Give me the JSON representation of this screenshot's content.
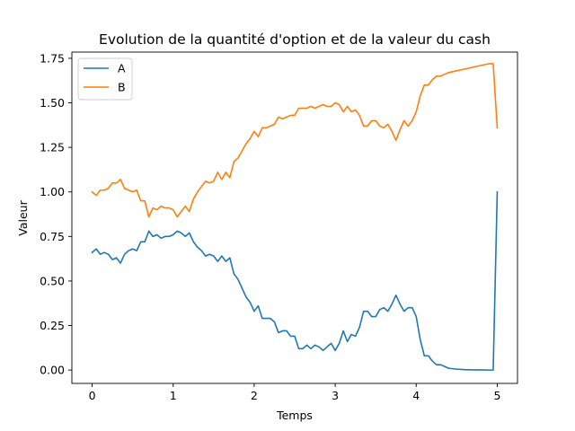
{
  "chart_data": {
    "type": "line",
    "title": "Evolution de la quantité d'option et de la valeur du cash",
    "xlabel": "Temps",
    "ylabel": "Valeur",
    "xlim": [
      -0.25,
      5.25
    ],
    "ylim": [
      -0.075,
      1.785
    ],
    "x_ticks": [
      0,
      1,
      2,
      3,
      4,
      5
    ],
    "x_tick_labels": [
      "0",
      "1",
      "2",
      "3",
      "4",
      "5"
    ],
    "y_ticks": [
      0.0,
      0.25,
      0.5,
      0.75,
      1.0,
      1.25,
      1.5,
      1.75
    ],
    "y_tick_labels": [
      "0.00",
      "0.25",
      "0.50",
      "0.75",
      "1.00",
      "1.25",
      "1.50",
      "1.75"
    ],
    "grid": false,
    "legend_position": "top-left",
    "series": [
      {
        "name": "A",
        "color": "#1f77b4",
        "x": [
          0.0,
          0.05,
          0.1,
          0.15,
          0.2,
          0.25,
          0.3,
          0.35,
          0.4,
          0.45,
          0.5,
          0.55,
          0.6,
          0.65,
          0.7,
          0.75,
          0.8,
          0.85,
          0.9,
          0.95,
          1.0,
          1.05,
          1.1,
          1.15,
          1.2,
          1.25,
          1.3,
          1.35,
          1.4,
          1.45,
          1.5,
          1.55,
          1.6,
          1.65,
          1.7,
          1.75,
          1.8,
          1.85,
          1.9,
          1.95,
          2.0,
          2.05,
          2.1,
          2.15,
          2.2,
          2.25,
          2.3,
          2.35,
          2.4,
          2.45,
          2.5,
          2.55,
          2.6,
          2.65,
          2.7,
          2.75,
          2.8,
          2.85,
          2.9,
          2.95,
          3.0,
          3.05,
          3.1,
          3.15,
          3.2,
          3.25,
          3.3,
          3.35,
          3.4,
          3.45,
          3.5,
          3.55,
          3.6,
          3.65,
          3.7,
          3.75,
          3.8,
          3.85,
          3.9,
          3.95,
          4.0,
          4.05,
          4.1,
          4.15,
          4.2,
          4.25,
          4.3,
          4.35,
          4.4,
          4.5,
          4.6,
          4.7,
          4.8,
          4.9,
          4.95,
          5.0
        ],
        "values": [
          0.66,
          0.68,
          0.65,
          0.66,
          0.65,
          0.62,
          0.63,
          0.6,
          0.65,
          0.67,
          0.68,
          0.67,
          0.72,
          0.72,
          0.78,
          0.75,
          0.76,
          0.74,
          0.75,
          0.75,
          0.76,
          0.78,
          0.77,
          0.75,
          0.77,
          0.72,
          0.69,
          0.67,
          0.64,
          0.65,
          0.64,
          0.61,
          0.64,
          0.61,
          0.63,
          0.54,
          0.51,
          0.46,
          0.41,
          0.38,
          0.33,
          0.36,
          0.29,
          0.29,
          0.29,
          0.27,
          0.21,
          0.22,
          0.22,
          0.19,
          0.19,
          0.12,
          0.12,
          0.14,
          0.12,
          0.14,
          0.13,
          0.11,
          0.13,
          0.15,
          0.11,
          0.15,
          0.22,
          0.16,
          0.2,
          0.19,
          0.24,
          0.33,
          0.33,
          0.3,
          0.3,
          0.34,
          0.35,
          0.33,
          0.37,
          0.42,
          0.37,
          0.33,
          0.35,
          0.35,
          0.3,
          0.17,
          0.08,
          0.08,
          0.05,
          0.03,
          0.03,
          0.02,
          0.01,
          0.005,
          0.002,
          0.001,
          0.001,
          0.0,
          0.0,
          1.0
        ]
      },
      {
        "name": "B",
        "color": "#ff7f0e",
        "x": [
          0.0,
          0.05,
          0.1,
          0.15,
          0.2,
          0.25,
          0.3,
          0.35,
          0.4,
          0.45,
          0.5,
          0.55,
          0.6,
          0.65,
          0.7,
          0.75,
          0.8,
          0.85,
          0.9,
          0.95,
          1.0,
          1.05,
          1.1,
          1.15,
          1.2,
          1.25,
          1.3,
          1.35,
          1.4,
          1.45,
          1.5,
          1.55,
          1.6,
          1.65,
          1.7,
          1.75,
          1.8,
          1.85,
          1.9,
          1.95,
          2.0,
          2.05,
          2.1,
          2.15,
          2.2,
          2.25,
          2.3,
          2.35,
          2.4,
          2.45,
          2.5,
          2.55,
          2.6,
          2.65,
          2.7,
          2.75,
          2.8,
          2.85,
          2.9,
          2.95,
          3.0,
          3.05,
          3.1,
          3.15,
          3.2,
          3.25,
          3.3,
          3.35,
          3.4,
          3.45,
          3.5,
          3.55,
          3.6,
          3.65,
          3.7,
          3.75,
          3.8,
          3.85,
          3.9,
          3.95,
          4.0,
          4.05,
          4.1,
          4.15,
          4.2,
          4.25,
          4.3,
          4.35,
          4.4,
          4.5,
          4.6,
          4.7,
          4.8,
          4.9,
          4.95,
          5.0
        ],
        "values": [
          1.0,
          0.98,
          1.01,
          1.01,
          1.02,
          1.05,
          1.05,
          1.07,
          1.02,
          1.01,
          1.0,
          1.01,
          0.95,
          0.95,
          0.86,
          0.91,
          0.9,
          0.92,
          0.91,
          0.91,
          0.9,
          0.86,
          0.89,
          0.92,
          0.89,
          0.96,
          1.0,
          1.03,
          1.06,
          1.05,
          1.06,
          1.11,
          1.07,
          1.11,
          1.08,
          1.17,
          1.19,
          1.23,
          1.27,
          1.3,
          1.34,
          1.31,
          1.36,
          1.36,
          1.37,
          1.38,
          1.42,
          1.41,
          1.42,
          1.43,
          1.43,
          1.47,
          1.47,
          1.47,
          1.48,
          1.47,
          1.48,
          1.49,
          1.48,
          1.48,
          1.5,
          1.49,
          1.45,
          1.48,
          1.45,
          1.46,
          1.43,
          1.37,
          1.37,
          1.4,
          1.4,
          1.37,
          1.36,
          1.38,
          1.34,
          1.29,
          1.35,
          1.4,
          1.37,
          1.4,
          1.45,
          1.54,
          1.6,
          1.6,
          1.63,
          1.65,
          1.65,
          1.66,
          1.67,
          1.68,
          1.69,
          1.7,
          1.71,
          1.72,
          1.72,
          1.36
        ]
      }
    ]
  }
}
